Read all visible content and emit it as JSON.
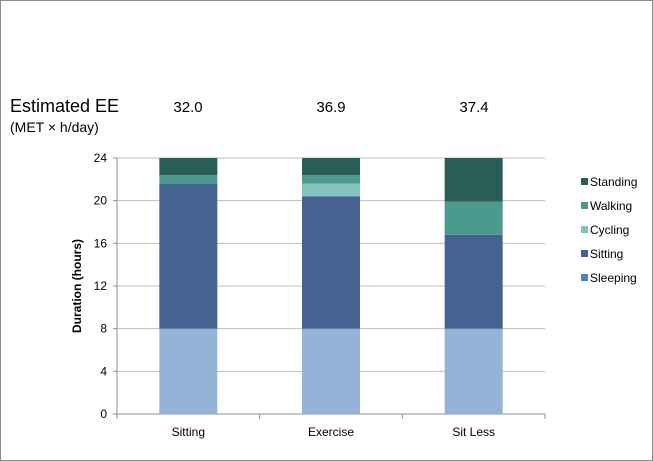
{
  "header": {
    "ee_title": "Estimated EE",
    "ee_units": "(MET × h/day)",
    "ee_values": [
      "32.0",
      "36.9",
      "37.4"
    ]
  },
  "chart_data": {
    "type": "bar",
    "stacked": true,
    "categories": [
      "Sitting",
      "Exercise",
      "Sit Less"
    ],
    "series": [
      {
        "name": "Sleeping",
        "values": [
          8.0,
          8.0,
          8.0
        ],
        "color": "#95b3d7",
        "legend_color": "#4f81bd"
      },
      {
        "name": "Sitting",
        "values": [
          13.6,
          12.4,
          8.8
        ],
        "color": "#466290"
      },
      {
        "name": "Cycling",
        "values": [
          0,
          1.2,
          0
        ],
        "color": "#82c3bd"
      },
      {
        "name": "Walking",
        "values": [
          0.8,
          0.8,
          3.1
        ],
        "color": "#4a9a8e"
      },
      {
        "name": "Standing",
        "values": [
          1.6,
          1.6,
          4.1
        ],
        "color": "#2b5d57"
      }
    ],
    "ylabel": "Duration (hours)",
    "xlabel": "",
    "ylim": [
      0,
      24
    ],
    "yticks": [
      0,
      4,
      8,
      12,
      16,
      20,
      24
    ],
    "grid": true,
    "legend_position": "right",
    "legend_order": [
      "Standing",
      "Walking",
      "Cycling",
      "Sitting",
      "Sleeping"
    ]
  }
}
